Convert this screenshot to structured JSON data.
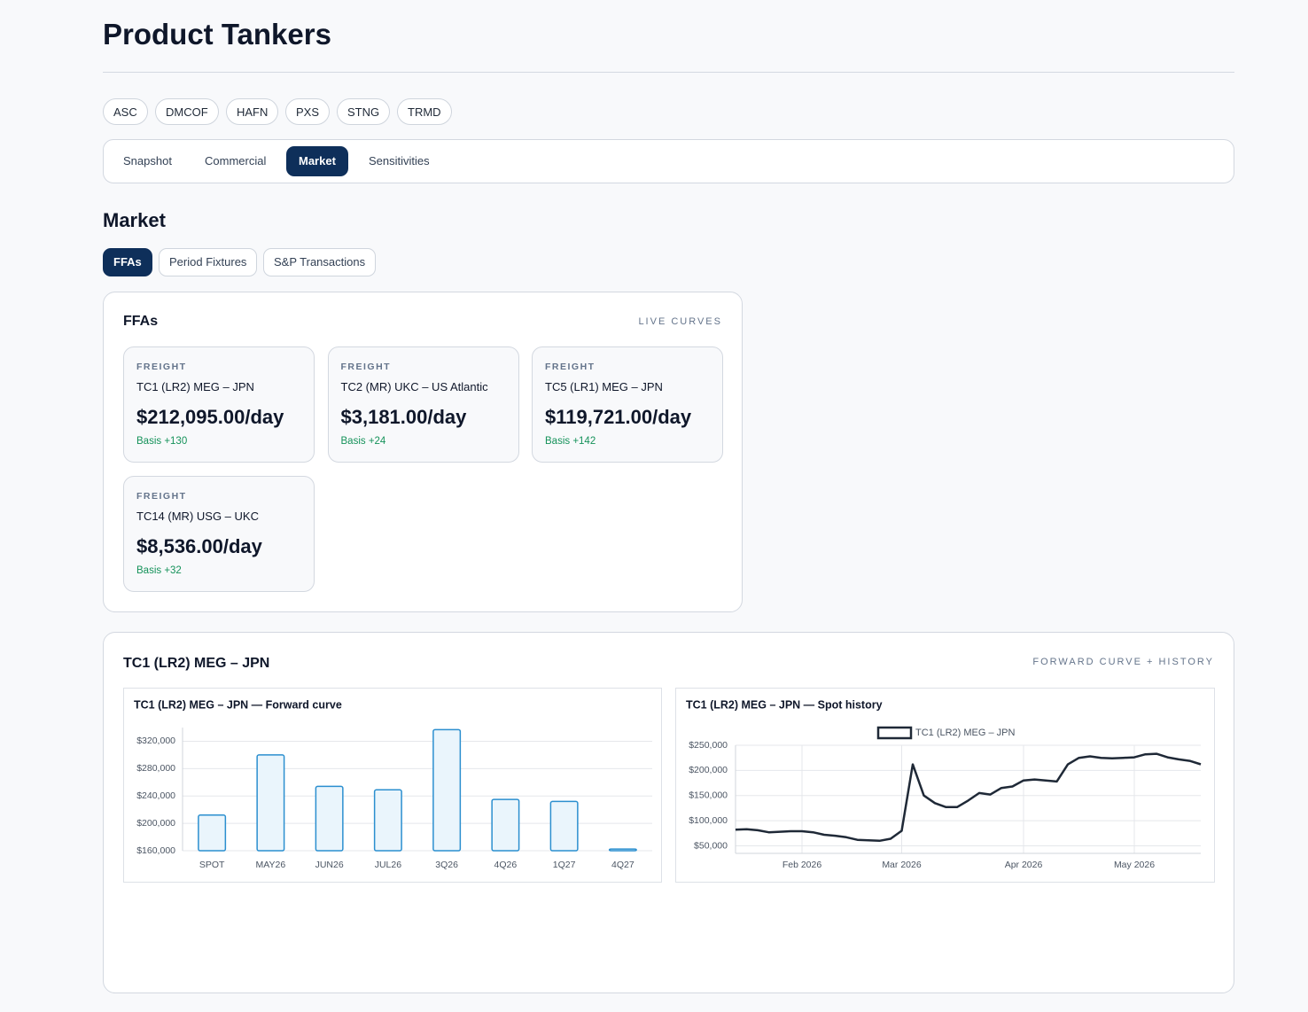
{
  "header": {
    "title": "Product Tankers"
  },
  "tickers": [
    "ASC",
    "DMCOF",
    "HAFN",
    "PXS",
    "STNG",
    "TRMD"
  ],
  "tabs": {
    "items": [
      "Snapshot",
      "Commercial",
      "Market",
      "Sensitivities"
    ],
    "active": 2
  },
  "section": {
    "title": "Market"
  },
  "subtabs": {
    "items": [
      "FFAs",
      "Period Fixtures",
      "S&P Transactions"
    ],
    "active": 0
  },
  "ffa_panel": {
    "title": "FFAs",
    "tag": "LIVE CURVES",
    "cards": [
      {
        "label": "FREIGHT",
        "route": "TC1 (LR2) MEG – JPN",
        "price": "$212,095.00/day",
        "basis": "Basis +130"
      },
      {
        "label": "FREIGHT",
        "route": "TC2 (MR) UKC – US Atlantic",
        "price": "$3,181.00/day",
        "basis": "Basis +24"
      },
      {
        "label": "FREIGHT",
        "route": "TC5 (LR1) MEG – JPN",
        "price": "$119,721.00/day",
        "basis": "Basis +142"
      },
      {
        "label": "FREIGHT",
        "route": "TC14 (MR) USG – UKC",
        "price": "$8,536.00/day",
        "basis": "Basis +32"
      }
    ]
  },
  "chart_panel": {
    "title": "TC1 (LR2) MEG – JPN",
    "tag": "FORWARD CURVE + HISTORY"
  },
  "chart_data": [
    {
      "type": "bar",
      "title": "TC1 (LR2) MEG – JPN — Forward curve",
      "categories": [
        "SPOT",
        "MAY26",
        "JUN26",
        "JUL26",
        "3Q26",
        "4Q26",
        "1Q27",
        "4Q27"
      ],
      "values": [
        212095,
        300000,
        254000,
        249000,
        337000,
        235000,
        232000,
        162500
      ],
      "color": "#2b8fcf",
      "fill": "#eaf5fc",
      "ylim": [
        160000,
        340000
      ],
      "yticks": [
        {
          "value": 160000,
          "label": "$160,000"
        },
        {
          "value": 200000,
          "label": "$200,000"
        },
        {
          "value": 240000,
          "label": "$240,000"
        },
        {
          "value": 280000,
          "label": "$280,000"
        },
        {
          "value": 320000,
          "label": "$320,000"
        }
      ],
      "grid": true
    },
    {
      "type": "line",
      "title": "TC1 (LR2) MEG – JPN — Spot history",
      "x": [
        "Jan 2026",
        "Jan 2026",
        "Jan 2026",
        "Jan 2026",
        "Jan 2026",
        "Jan 2026",
        "Feb 2026",
        "Feb 2026",
        "Feb 2026",
        "Feb 2026",
        "Feb 2026",
        "Feb 2026",
        "Feb 2026",
        "Feb 2026",
        "Feb 2026",
        "Mar 2026",
        "Mar 2026",
        "Mar 2026",
        "Mar 2026",
        "Mar 2026",
        "Mar 2026",
        "Mar 2026",
        "Mar 2026",
        "Mar 2026",
        "Mar 2026",
        "Mar 2026",
        "Apr 2026",
        "Apr 2026",
        "Apr 2026",
        "Apr 2026",
        "Apr 2026",
        "Apr 2026",
        "Apr 2026",
        "Apr 2026",
        "Apr 2026",
        "Apr 2026",
        "May 2026",
        "May 2026",
        "May 2026",
        "May 2026",
        "May 2026",
        "May 2026",
        "May 2026"
      ],
      "series": [
        {
          "name": "TC1 (LR2) MEG – JPN",
          "color": "#1f2937",
          "values": [
            82000,
            83000,
            81000,
            77000,
            78000,
            79000,
            79000,
            77000,
            72000,
            70000,
            67000,
            62000,
            61000,
            60000,
            64000,
            80000,
            212000,
            150000,
            135000,
            127000,
            127000,
            140000,
            155000,
            152000,
            165000,
            168000,
            180000,
            182000,
            180000,
            178000,
            212000,
            225000,
            228000,
            225000,
            224000,
            225000,
            226000,
            232000,
            233000,
            226000,
            222000,
            219000,
            212095
          ]
        }
      ],
      "xticks": [
        "Feb 2026",
        "Mar 2026",
        "Apr 2026",
        "May 2026"
      ],
      "ylim": [
        35000,
        250000
      ],
      "yticks": [
        {
          "value": 50000,
          "label": "$50,000"
        },
        {
          "value": 100000,
          "label": "$100,000"
        },
        {
          "value": 150000,
          "label": "$150,000"
        },
        {
          "value": 200000,
          "label": "$200,000"
        },
        {
          "value": 250000,
          "label": "$250,000"
        }
      ],
      "grid": true,
      "legend": "top"
    }
  ]
}
